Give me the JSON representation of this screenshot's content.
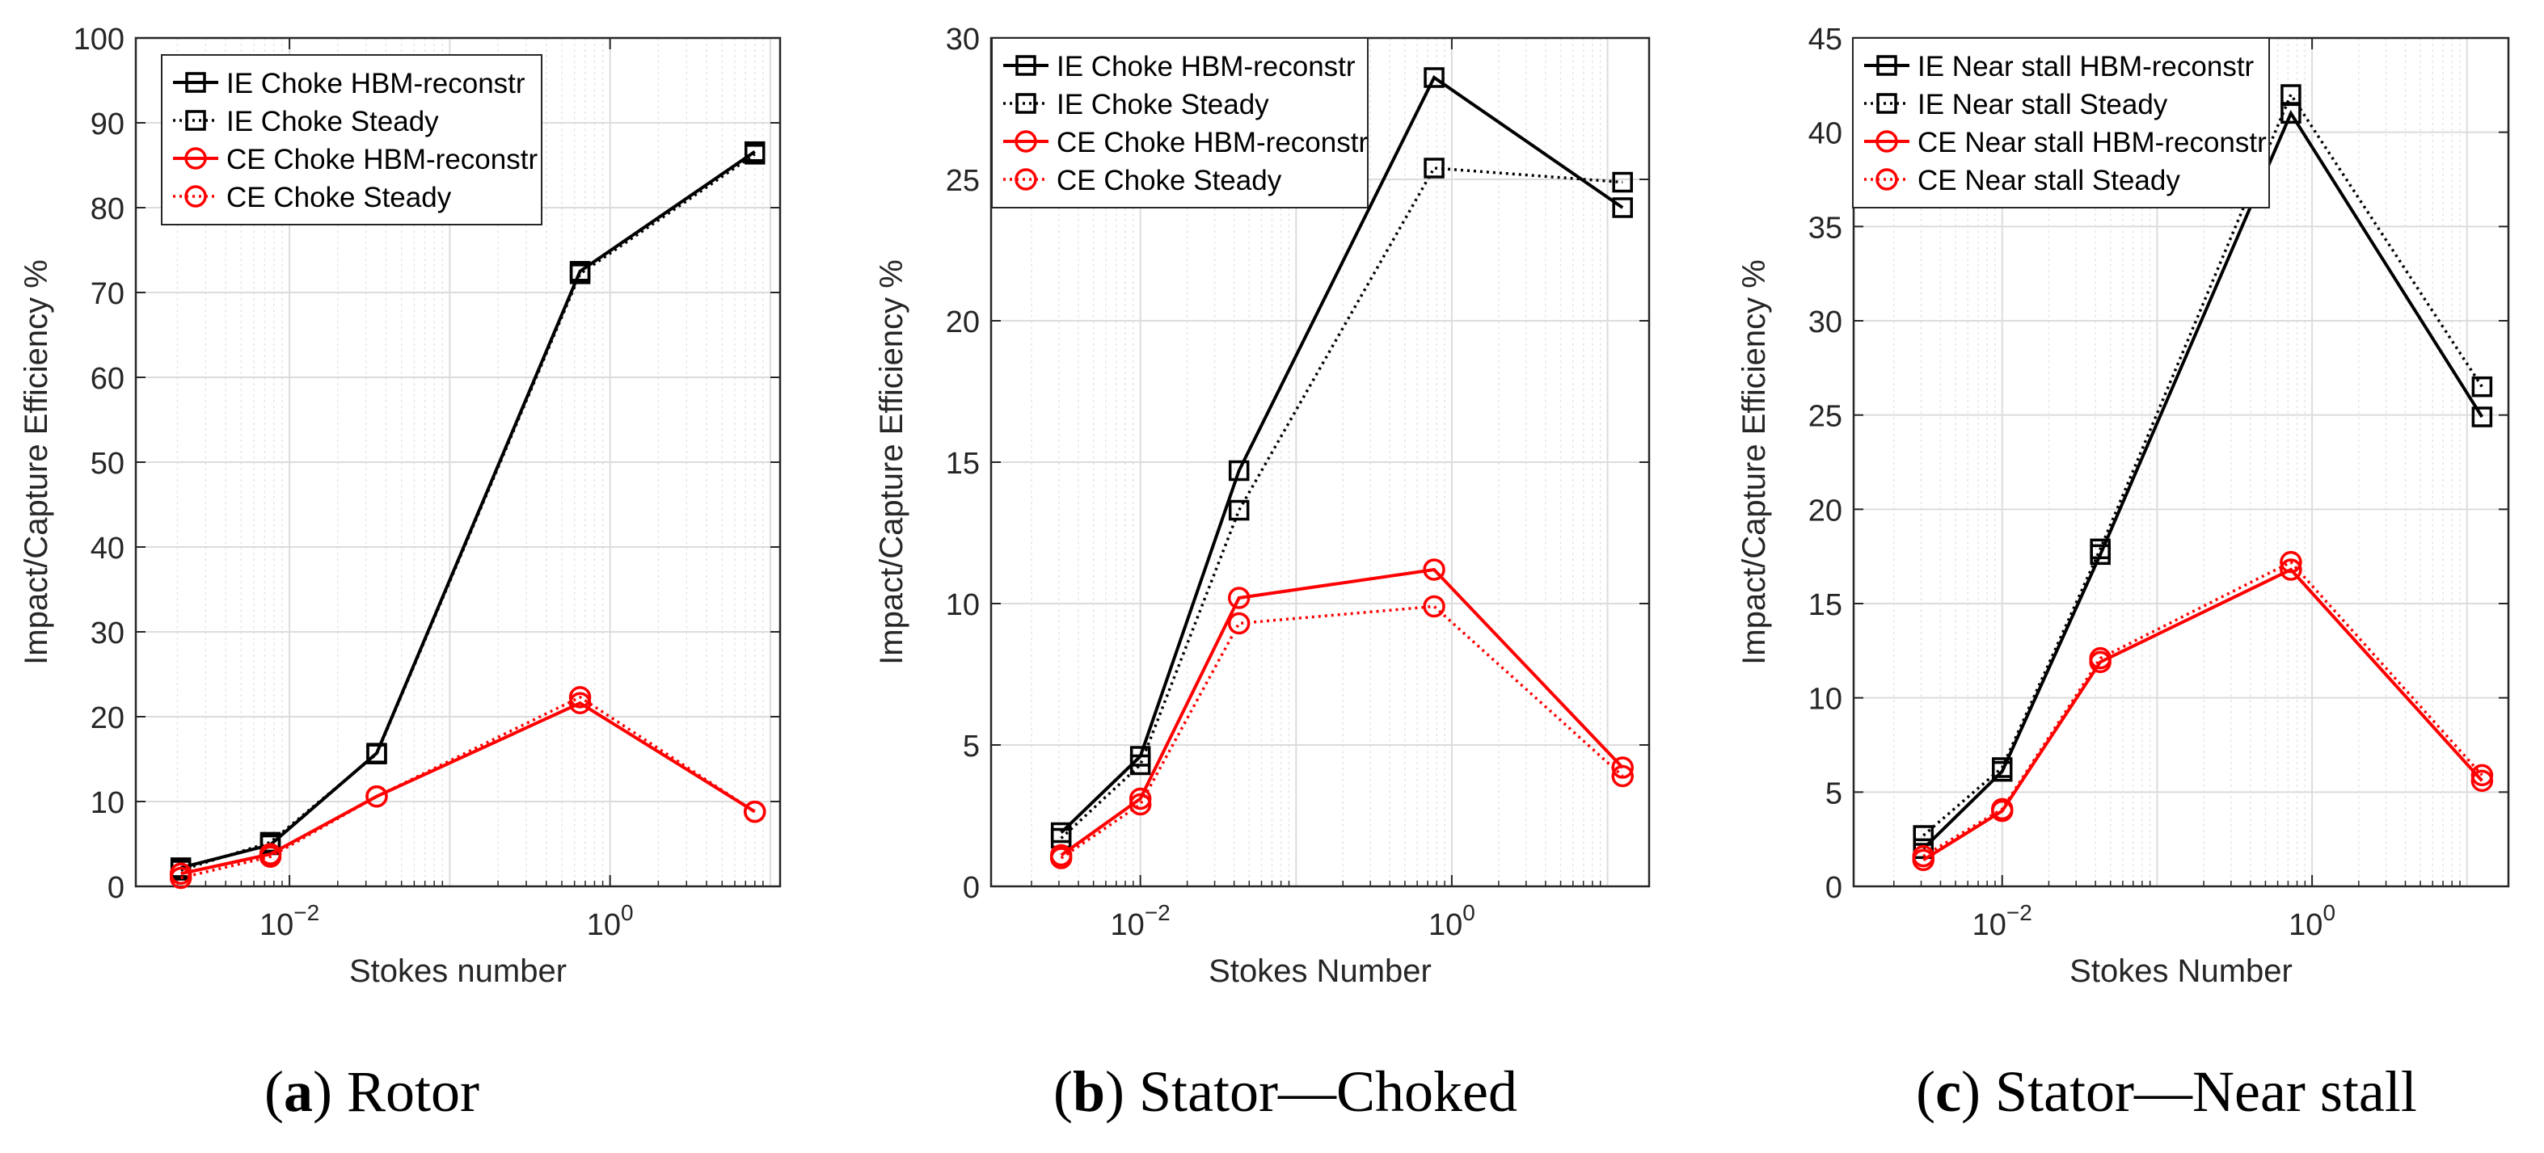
{
  "chart_data": [
    {
      "type": "line",
      "subplot": "a",
      "xscale": "log",
      "xlabel": "Stokes number",
      "ylabel": "Impact/Capture Efficiency %",
      "ylim": [
        0,
        100
      ],
      "yticks": [
        0,
        10,
        20,
        30,
        40,
        50,
        60,
        70,
        80,
        90,
        100
      ],
      "xticks": [
        {
          "value": 0.01,
          "base": "10",
          "exp": "−2"
        },
        {
          "value": 1,
          "base": "10",
          "exp": "0"
        }
      ],
      "grid": true,
      "legend_position": "top-left",
      "series": [
        {
          "name": "IE Choke HBM-reconstr",
          "color": "#000000",
          "dash": "solid",
          "marker": "square",
          "x": [
            0.0021,
            0.0076,
            0.035,
            0.65,
            8.0
          ],
          "y": [
            2.2,
            4.9,
            15.7,
            72.5,
            86.6
          ]
        },
        {
          "name": "IE Choke Steady",
          "color": "#000000",
          "dash": "dotted",
          "marker": "square",
          "x": [
            0.0021,
            0.0076,
            0.035,
            0.65,
            8.0
          ],
          "y": [
            1.9,
            5.2,
            15.6,
            72.2,
            86.3
          ]
        },
        {
          "name": "CE Choke HBM-reconstr",
          "color": "#ff0000",
          "dash": "solid",
          "marker": "circle",
          "x": [
            0.0021,
            0.0076,
            0.035,
            0.65,
            8.0
          ],
          "y": [
            1.5,
            3.8,
            10.6,
            21.6,
            8.8
          ]
        },
        {
          "name": "CE Choke Steady",
          "color": "#ff0000",
          "dash": "dotted",
          "marker": "circle",
          "x": [
            0.0021,
            0.0076,
            0.035,
            0.65,
            8.0
          ],
          "y": [
            1.0,
            3.5,
            10.6,
            22.3,
            8.8
          ]
        }
      ]
    },
    {
      "type": "line",
      "subplot": "b",
      "xscale": "log",
      "xlabel": "Stokes Number",
      "ylabel": "Impact/Capture Efficiency %",
      "ylim": [
        0,
        30
      ],
      "yticks": [
        0,
        5,
        10,
        15,
        20,
        25,
        30
      ],
      "xticks": [
        {
          "value": 0.01,
          "base": "10",
          "exp": "−2"
        },
        {
          "value": 1,
          "base": "10",
          "exp": "0"
        }
      ],
      "grid": true,
      "legend_position": "top-left",
      "series": [
        {
          "name": "IE Choke HBM-reconstr",
          "color": "#000000",
          "dash": "solid",
          "marker": "square",
          "x": [
            0.0031,
            0.01,
            0.043,
            0.77,
            12.5
          ],
          "y": [
            1.9,
            4.6,
            14.7,
            28.6,
            24.0
          ]
        },
        {
          "name": "IE Choke Steady",
          "color": "#000000",
          "dash": "dotted",
          "marker": "square",
          "x": [
            0.0031,
            0.01,
            0.043,
            0.77,
            12.5
          ],
          "y": [
            1.7,
            4.3,
            13.3,
            25.4,
            24.9
          ]
        },
        {
          "name": "CE Choke HBM-reconstr",
          "color": "#ff0000",
          "dash": "solid",
          "marker": "circle",
          "x": [
            0.0031,
            0.01,
            0.043,
            0.77,
            12.5
          ],
          "y": [
            1.1,
            3.1,
            10.2,
            11.2,
            4.2
          ]
        },
        {
          "name": "CE Choke Steady",
          "color": "#ff0000",
          "dash": "dotted",
          "marker": "circle",
          "x": [
            0.0031,
            0.01,
            0.043,
            0.77,
            12.5
          ],
          "y": [
            1.0,
            2.9,
            9.3,
            9.9,
            3.9
          ]
        }
      ]
    },
    {
      "type": "line",
      "subplot": "c",
      "xscale": "log",
      "xlabel": "Stokes Number",
      "ylabel": "Impact/Capture Efficiency %",
      "ylim": [
        0,
        45
      ],
      "yticks": [
        0,
        5,
        10,
        15,
        20,
        25,
        30,
        35,
        40,
        45
      ],
      "xticks": [
        {
          "value": 0.01,
          "base": "10",
          "exp": "−2"
        },
        {
          "value": 1,
          "base": "10",
          "exp": "0"
        }
      ],
      "grid": true,
      "legend_position": "top-left",
      "series": [
        {
          "name": "IE Near stall HBM-reconstr",
          "color": "#000000",
          "dash": "solid",
          "marker": "square",
          "x": [
            0.0031,
            0.01,
            0.043,
            0.73,
            12.5
          ],
          "y": [
            2.0,
            6.1,
            17.6,
            41.0,
            24.9
          ]
        },
        {
          "name": "IE Near stall Steady",
          "color": "#000000",
          "dash": "dotted",
          "marker": "square",
          "x": [
            0.0031,
            0.01,
            0.043,
            0.73,
            12.5
          ],
          "y": [
            2.7,
            6.3,
            17.9,
            42.0,
            26.5
          ]
        },
        {
          "name": "CE Near stall HBM-reconstr",
          "color": "#ff0000",
          "dash": "solid",
          "marker": "circle",
          "x": [
            0.0031,
            0.01,
            0.043,
            0.73,
            12.5
          ],
          "y": [
            1.4,
            4.0,
            11.9,
            16.8,
            5.6
          ]
        },
        {
          "name": "CE Near stall Steady",
          "color": "#ff0000",
          "dash": "dotted",
          "marker": "circle",
          "x": [
            0.0031,
            0.01,
            0.043,
            0.73,
            12.5
          ],
          "y": [
            1.6,
            4.1,
            12.1,
            17.2,
            5.9
          ]
        }
      ]
    }
  ],
  "captions": [
    {
      "letter": "a",
      "text": "Rotor"
    },
    {
      "letter": "b",
      "text": "Stator—Choked"
    },
    {
      "letter": "c",
      "text": "Stator—Near stall"
    }
  ]
}
